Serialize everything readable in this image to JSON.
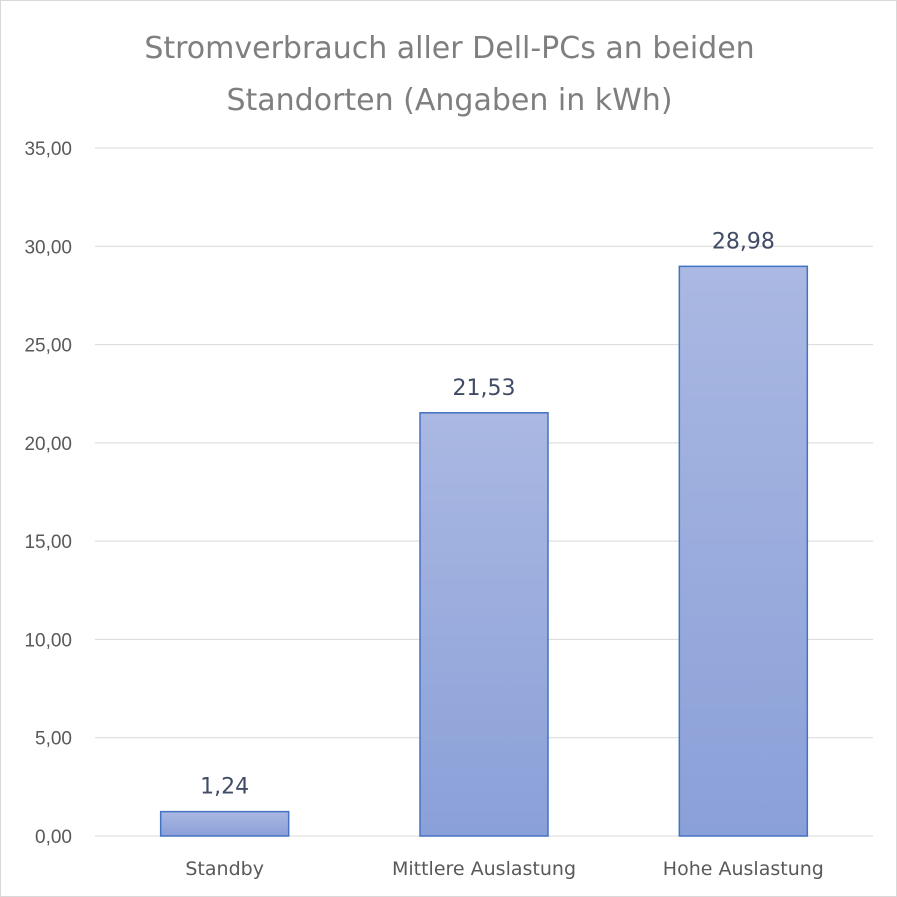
{
  "chart_data": {
    "type": "bar",
    "title": "Stromverbrauch aller Dell-PCs an beiden Standorten (Angaben in kWh)",
    "title_lines": [
      "Stromverbrauch aller Dell-PCs an beiden",
      "Standorten (Angaben in kWh)"
    ],
    "categories": [
      "Standby",
      "Mittlere Auslastung",
      "Hohe Auslastung"
    ],
    "values": [
      1.24,
      21.53,
      28.98
    ],
    "data_labels": [
      "1,24",
      "21,53",
      "28,98"
    ],
    "ylim": [
      0,
      35
    ],
    "yticks": [
      0,
      5,
      10,
      15,
      20,
      25,
      30,
      35
    ],
    "ytick_labels": [
      "0,00",
      "5,00",
      "10,00",
      "15,00",
      "20,00",
      "25,00",
      "30,00",
      "35,00"
    ],
    "xlabel": "",
    "ylabel": "",
    "grid": true,
    "legend": "none",
    "colors": {
      "bar_top": "#aab8e2",
      "bar_bottom": "#8aa0d8",
      "bar_border": "#4472c4",
      "grid": "#d9d9d9",
      "title": "#7f7f7f"
    }
  }
}
